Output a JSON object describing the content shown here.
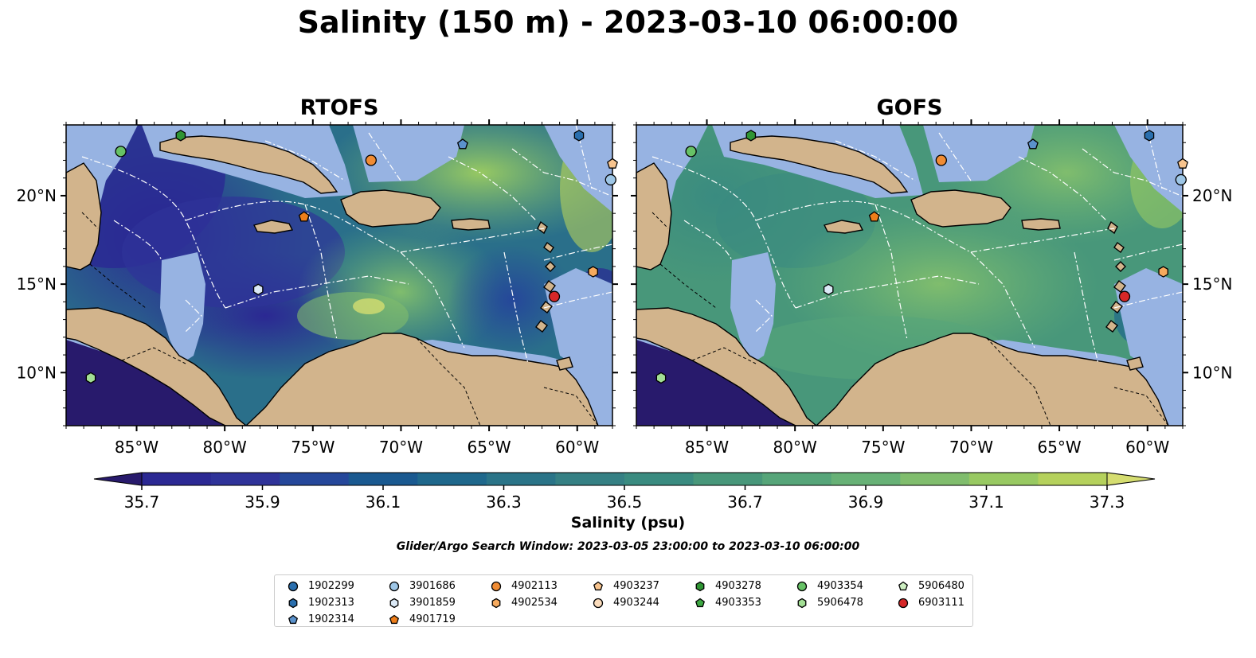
{
  "title": "Salinity (150 m) - 2023-03-10 06:00:00",
  "panels": [
    {
      "title": "RTOFS"
    },
    {
      "title": "GOFS"
    }
  ],
  "lon_ticks": [
    "85°W",
    "80°W",
    "75°W",
    "70°W",
    "65°W",
    "60°W"
  ],
  "lat_ticks": [
    "20°N",
    "15°N",
    "10°N"
  ],
  "map_extent": {
    "lon": [
      -89,
      -58
    ],
    "lat": [
      7,
      24
    ]
  },
  "colorbar": {
    "label": "Salinity (psu)",
    "ticks": [
      "35.7",
      "35.9",
      "36.1",
      "36.3",
      "36.5",
      "36.7",
      "36.9",
      "37.1",
      "37.3"
    ],
    "min": 35.6,
    "max": 37.4,
    "colors": [
      "#281a6c",
      "#2b2893",
      "#2f3399",
      "#25479a",
      "#1a5990",
      "#1f688c",
      "#2a7488",
      "#358084",
      "#3a8b80",
      "#48977a",
      "#56a579",
      "#67b176",
      "#80bd6d",
      "#98c962",
      "#b5d15c",
      "#d5dd70"
    ],
    "extend": "both"
  },
  "search_window": "Glider/Argo Search Window: 2023-03-05 23:00:00 to 2023-03-10 06:00:00",
  "legend": [
    {
      "id": "1902299",
      "shape": "circle",
      "color": "#2a6fae"
    },
    {
      "id": "1902313",
      "shape": "hexagon",
      "color": "#2a6fae"
    },
    {
      "id": "1902314",
      "shape": "pentagon",
      "color": "#5b92cc"
    },
    {
      "id": "3901686",
      "shape": "circle",
      "color": "#9ec6e6"
    },
    {
      "id": "3901859",
      "shape": "hexagon",
      "color": "#dbe9f6"
    },
    {
      "id": "4901719",
      "shape": "pentagon",
      "color": "#ee7e1a"
    },
    {
      "id": "4902113",
      "shape": "circle",
      "color": "#f08c34"
    },
    {
      "id": "4902534",
      "shape": "hexagon",
      "color": "#f6aa5e"
    },
    {
      "id": "4903237",
      "shape": "pentagon",
      "color": "#f8c48e"
    },
    {
      "id": "4903244",
      "shape": "circle",
      "color": "#fbdcbc"
    },
    {
      "id": "4903278",
      "shape": "hexagon",
      "color": "#2f9533"
    },
    {
      "id": "4903353",
      "shape": "pentagon",
      "color": "#3ea843"
    },
    {
      "id": "4903354",
      "shape": "circle",
      "color": "#67c266"
    },
    {
      "id": "5906478",
      "shape": "hexagon",
      "color": "#a3df95"
    },
    {
      "id": "5906480",
      "shape": "pentagon",
      "color": "#cdeec1"
    },
    {
      "id": "6903111",
      "shape": "circle",
      "color": "#d62728"
    }
  ],
  "floats": [
    {
      "id": "4903354",
      "lon": -85.9,
      "lat": 22.5
    },
    {
      "id": "4903278",
      "lon": -82.5,
      "lat": 23.4
    },
    {
      "id": "4902113",
      "lon": -71.7,
      "lat": 22.0
    },
    {
      "id": "1902314",
      "lon": -66.5,
      "lat": 22.9
    },
    {
      "id": "1902313",
      "lon": -59.9,
      "lat": 23.4
    },
    {
      "id": "4903237",
      "lon": -58.0,
      "lat": 21.8
    },
    {
      "id": "3901686",
      "lon": -58.1,
      "lat": 20.9
    },
    {
      "id": "4901719",
      "lon": -75.5,
      "lat": 18.8
    },
    {
      "id": "3901859",
      "lon": -78.1,
      "lat": 14.7
    },
    {
      "id": "4902534",
      "lon": -59.1,
      "lat": 15.7
    },
    {
      "id": "6903111",
      "lon": -61.3,
      "lat": 14.3
    },
    {
      "id": "5906478",
      "lon": -87.6,
      "lat": 9.7
    }
  ]
}
